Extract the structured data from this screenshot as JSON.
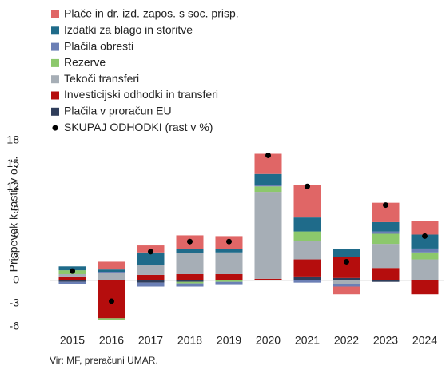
{
  "chart_data": {
    "type": "stacked_bar",
    "y_label": "Prispevek k rasti, v o. t.",
    "source": "Vir: MF, preračuni UMAR.",
    "categories": [
      "2015",
      "2016",
      "2017",
      "2018",
      "2019",
      "2020",
      "2021",
      "2022",
      "2023",
      "2024"
    ],
    "series": [
      {
        "name": "Plače in dr. izd. zapos. s soc. prisp.",
        "color": "#e06666",
        "values": [
          0,
          1.0,
          0.9,
          1.8,
          1.7,
          2.6,
          4.2,
          -1.0,
          2.5,
          1.7
        ]
      },
      {
        "name": "Izdatki za blago in storitve",
        "color": "#1f6b8a",
        "values": [
          0.5,
          0.3,
          1.6,
          0.5,
          0.4,
          1.4,
          1.8,
          1.0,
          1.2,
          1.8
        ]
      },
      {
        "name": "Plačila obresti",
        "color": "#6b7fb5",
        "values": [
          -0.3,
          0.1,
          -0.5,
          -0.4,
          -0.4,
          0.2,
          -0.3,
          -0.3,
          0.3,
          0.5
        ]
      },
      {
        "name": "Rezerve",
        "color": "#8cc86c",
        "values": [
          0.5,
          -0.2,
          0.0,
          -0.2,
          -0.2,
          0.7,
          1.2,
          0.0,
          1.3,
          0.9
        ]
      },
      {
        "name": "Tekoči transferi",
        "color": "#a6aeb6",
        "values": [
          0.3,
          1.0,
          1.3,
          2.7,
          2.8,
          11.2,
          2.4,
          -0.5,
          3.1,
          2.7
        ]
      },
      {
        "name": "Investicijski odhodki in transferi",
        "color": "#b50d0d",
        "values": [
          0.5,
          -4.9,
          0.7,
          0.8,
          0.8,
          0.2,
          2.2,
          2.7,
          1.6,
          -1.8
        ]
      },
      {
        "name": "Plačila v proračun EU",
        "color": "#2f3d5a",
        "values": [
          -0.2,
          0.0,
          -0.3,
          -0.2,
          0.0,
          0.0,
          0.5,
          0.3,
          -0.2,
          0.0
        ]
      }
    ],
    "total": {
      "name": "SKUPAJ ODHODKI (rast v %)",
      "color": "#000000",
      "values": [
        1.2,
        -2.7,
        3.7,
        5.0,
        5.0,
        16.1,
        12.1,
        2.4,
        9.7,
        5.7
      ]
    },
    "ylim": [
      -6,
      18
    ],
    "yticks": [
      -6,
      -3,
      0,
      3,
      6,
      9,
      12,
      15,
      18
    ]
  }
}
